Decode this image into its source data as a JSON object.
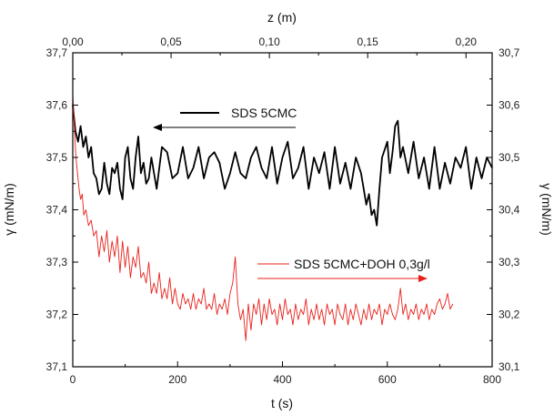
{
  "chart_data": {
    "type": "line",
    "x_axis": {
      "label": "t (s)",
      "range": [
        0,
        800
      ],
      "ticks": [
        0,
        200,
        400,
        600,
        800
      ],
      "tick_labels": [
        "0",
        "200",
        "400",
        "600",
        "800"
      ]
    },
    "top_axis": {
      "label": "z (m)",
      "range": [
        0,
        0.2133
      ],
      "ticks": [
        0,
        0.05,
        0.1,
        0.15,
        0.2
      ],
      "tick_labels": [
        "0,00",
        "0,05",
        "0,10",
        "0,15",
        "0,20"
      ]
    },
    "y_left": {
      "label": "γ (mN/m)",
      "range": [
        37.1,
        37.7
      ],
      "ticks": [
        37.1,
        37.2,
        37.3,
        37.4,
        37.5,
        37.6,
        37.7
      ],
      "tick_labels": [
        "37,1",
        "37,2",
        "37,3",
        "37,4",
        "37,5",
        "37,6",
        "37,7"
      ]
    },
    "y_right": {
      "label": "γ (mN/m)",
      "range": [
        30.1,
        30.7
      ],
      "ticks": [
        30.1,
        30.2,
        30.3,
        30.4,
        30.5,
        30.6,
        30.7
      ],
      "tick_labels": [
        "30,1",
        "30,2",
        "30,3",
        "30,4",
        "30,5",
        "30,6",
        "30,7"
      ]
    },
    "grid": false,
    "series": [
      {
        "name": "SDS 5CMC",
        "color": "#000000",
        "y_axis": "right",
        "legend_arrow": "left",
        "x": [
          0,
          5,
          10,
          15,
          20,
          25,
          30,
          35,
          40,
          45,
          50,
          55,
          60,
          65,
          70,
          75,
          80,
          85,
          90,
          95,
          100,
          105,
          110,
          115,
          120,
          125,
          130,
          135,
          140,
          145,
          150,
          160,
          170,
          180,
          190,
          200,
          210,
          220,
          230,
          240,
          250,
          260,
          270,
          280,
          290,
          300,
          310,
          320,
          330,
          340,
          350,
          360,
          370,
          380,
          390,
          400,
          410,
          420,
          430,
          440,
          450,
          460,
          470,
          480,
          490,
          500,
          510,
          520,
          530,
          540,
          550,
          560,
          565,
          570,
          575,
          580,
          585,
          590,
          600,
          605,
          610,
          615,
          620,
          625,
          630,
          640,
          650,
          660,
          670,
          680,
          690,
          700,
          710,
          720,
          730,
          740,
          750,
          760,
          770,
          780,
          790,
          800
        ],
        "y": [
          30.6,
          30.55,
          30.53,
          30.56,
          30.52,
          30.54,
          30.5,
          30.52,
          30.47,
          30.46,
          30.43,
          30.44,
          30.49,
          30.45,
          30.43,
          30.48,
          30.47,
          30.49,
          30.44,
          30.42,
          30.5,
          30.52,
          30.46,
          30.44,
          30.5,
          30.54,
          30.47,
          30.49,
          30.45,
          30.46,
          30.5,
          30.44,
          30.52,
          30.51,
          30.46,
          30.47,
          30.52,
          30.46,
          30.48,
          30.52,
          30.46,
          30.5,
          30.51,
          30.49,
          30.44,
          30.47,
          30.51,
          30.47,
          30.46,
          30.5,
          30.52,
          30.48,
          30.46,
          30.52,
          30.45,
          30.5,
          30.53,
          30.46,
          30.48,
          30.52,
          30.44,
          30.5,
          30.47,
          30.51,
          30.44,
          30.52,
          30.45,
          30.49,
          30.44,
          30.5,
          30.47,
          30.41,
          30.43,
          30.39,
          30.4,
          30.37,
          30.44,
          30.5,
          30.53,
          30.47,
          30.51,
          30.56,
          30.57,
          30.5,
          30.52,
          30.47,
          30.53,
          30.46,
          30.5,
          30.44,
          30.52,
          30.44,
          30.49,
          30.45,
          30.5,
          30.48,
          30.52,
          30.44,
          30.5,
          30.46,
          30.5,
          30.48
        ]
      },
      {
        "name": "SDS 5CMC+DOH 0,3g/l",
        "color": "#e8201a",
        "y_axis": "left",
        "legend_arrow": "right",
        "x": [
          0,
          3,
          6,
          9,
          12,
          15,
          18,
          21,
          25,
          30,
          35,
          40,
          45,
          50,
          55,
          60,
          65,
          70,
          75,
          80,
          85,
          90,
          95,
          100,
          105,
          110,
          115,
          120,
          125,
          130,
          135,
          140,
          145,
          150,
          155,
          160,
          165,
          170,
          175,
          180,
          185,
          190,
          195,
          200,
          205,
          210,
          215,
          220,
          225,
          230,
          235,
          240,
          245,
          250,
          255,
          260,
          265,
          270,
          275,
          280,
          285,
          290,
          295,
          300,
          305,
          310,
          315,
          320,
          325,
          330,
          335,
          340,
          345,
          350,
          355,
          360,
          365,
          370,
          375,
          380,
          385,
          390,
          395,
          400,
          405,
          410,
          415,
          420,
          425,
          430,
          435,
          440,
          445,
          450,
          455,
          460,
          465,
          470,
          475,
          480,
          485,
          490,
          495,
          500,
          505,
          510,
          515,
          520,
          525,
          530,
          535,
          540,
          545,
          550,
          555,
          560,
          565,
          570,
          575,
          580,
          585,
          590,
          595,
          600,
          605,
          610,
          615,
          620,
          625,
          630,
          635,
          640,
          645,
          650,
          655,
          660,
          665,
          670,
          675,
          680,
          685,
          690,
          695,
          700,
          705,
          710,
          715,
          720,
          725
        ],
        "y": [
          37.62,
          37.56,
          37.5,
          37.47,
          37.44,
          37.42,
          37.43,
          37.39,
          37.4,
          37.37,
          37.38,
          37.35,
          37.36,
          37.31,
          37.35,
          37.32,
          37.36,
          37.3,
          37.34,
          37.31,
          37.35,
          37.28,
          37.34,
          37.29,
          37.33,
          37.27,
          37.31,
          37.29,
          37.33,
          37.27,
          37.28,
          37.26,
          37.3,
          37.24,
          37.26,
          37.24,
          37.28,
          37.23,
          37.25,
          37.23,
          37.27,
          37.22,
          37.25,
          37.22,
          37.21,
          37.24,
          37.22,
          37.23,
          37.21,
          37.24,
          37.21,
          37.23,
          37.22,
          37.25,
          37.21,
          37.22,
          37.21,
          37.24,
          37.2,
          37.22,
          37.21,
          37.23,
          37.2,
          37.24,
          37.26,
          37.31,
          37.22,
          37.19,
          37.21,
          37.15,
          37.22,
          37.17,
          37.22,
          37.2,
          37.23,
          37.18,
          37.22,
          37.19,
          37.23,
          37.2,
          37.21,
          37.18,
          37.22,
          37.19,
          37.23,
          37.2,
          37.21,
          37.18,
          37.22,
          37.19,
          37.21,
          37.2,
          37.23,
          37.18,
          37.21,
          37.19,
          37.22,
          37.19,
          37.21,
          37.18,
          37.22,
          37.2,
          37.21,
          37.18,
          37.22,
          37.2,
          37.19,
          37.22,
          37.18,
          37.21,
          37.19,
          37.22,
          37.2,
          37.18,
          37.21,
          37.19,
          37.22,
          37.19,
          37.21,
          37.2,
          37.22,
          37.18,
          37.21,
          37.2,
          37.22,
          37.2,
          37.19,
          37.21,
          37.25,
          37.2,
          37.22,
          37.19,
          37.21,
          37.2,
          37.22,
          37.19,
          37.21,
          37.2,
          37.22,
          37.19,
          37.21,
          37.2,
          37.22,
          37.23,
          37.21,
          37.22,
          37.24,
          37.21,
          37.22
        ]
      }
    ]
  }
}
